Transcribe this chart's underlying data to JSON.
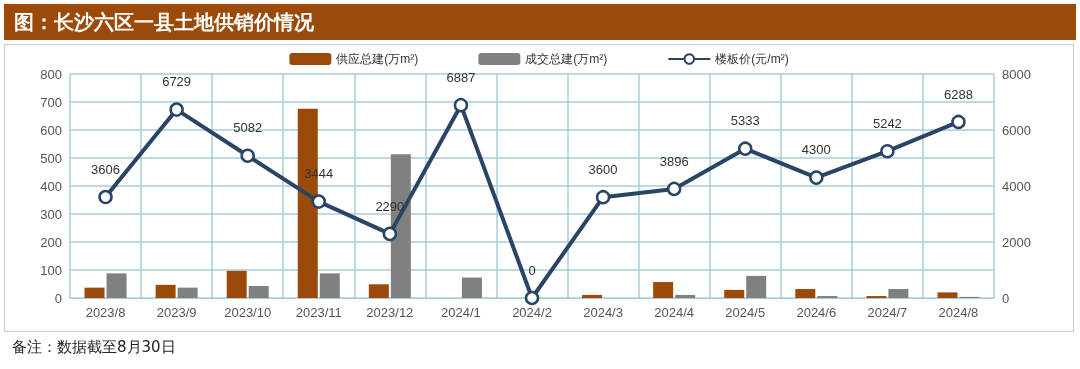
{
  "chart_data": {
    "type": "bar",
    "title": "图：长沙六区一县土地供销价情况",
    "annotations": [
      "备注：数据截至8月30日"
    ],
    "categories": [
      "2023/8",
      "2023/9",
      "2023/10",
      "2023/11",
      "2023/12",
      "2024/1",
      "2024/2",
      "2024/3",
      "2024/4",
      "2024/5",
      "2024/6",
      "2024/7",
      "2024/8"
    ],
    "series": [
      {
        "name": "供应总建(万m²)",
        "color": "#9c4a0a",
        "values": [
          37,
          47,
          97,
          676,
          49,
          0,
          0,
          11,
          57,
          29,
          32,
          7,
          20
        ]
      },
      {
        "name": "成交总建(万m²)",
        "color": "#808080",
        "values": [
          88,
          37,
          43,
          88,
          513,
          73,
          0,
          0,
          11,
          79,
          7,
          32,
          4
        ]
      },
      {
        "name": "楼板价(元/m²)",
        "type": "line",
        "axis": "y2",
        "color": "#2a4466",
        "marker": "circle",
        "data_labels": true,
        "values": [
          3606,
          6729,
          5082,
          3444,
          2290,
          6887,
          0,
          3600,
          3896,
          5333,
          4300,
          5242,
          6288
        ]
      }
    ],
    "ylim": [
      0,
      800
    ],
    "yticks": [
      0,
      100,
      200,
      300,
      400,
      500,
      600,
      700,
      800
    ],
    "y2lim": [
      0,
      8000
    ],
    "y2ticks": [
      0,
      2000,
      4000,
      6000,
      8000
    ],
    "grid": true,
    "legend": "top"
  }
}
